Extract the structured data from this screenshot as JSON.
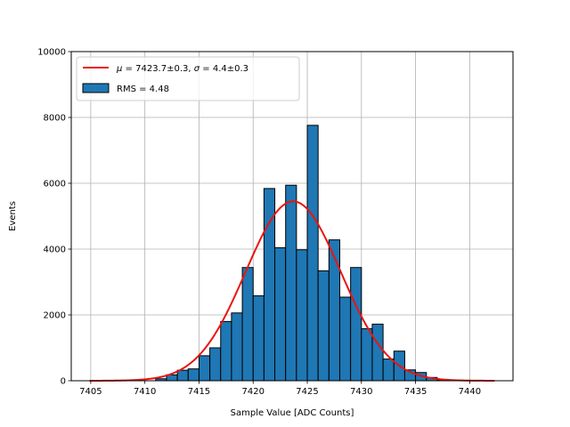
{
  "chart_data": {
    "type": "bar",
    "title": "",
    "xlabel": "Sample Value [ADC Counts]",
    "ylabel": "Events",
    "xlim": [
      7403.2,
      7444.0
    ],
    "ylim": [
      0,
      10000
    ],
    "xticks": [
      7405,
      7410,
      7415,
      7420,
      7425,
      7430,
      7435,
      7440
    ],
    "yticks": [
      0,
      2000,
      4000,
      6000,
      8000,
      10000
    ],
    "grid": true,
    "legend_position": "top-left",
    "histogram": {
      "name": "RMS = 4.48",
      "bin_width": 1,
      "bin_lefts": [
        7411,
        7412,
        7413,
        7414,
        7415,
        7416,
        7417,
        7418,
        7419,
        7420,
        7421,
        7422,
        7423,
        7424,
        7425,
        7426,
        7427,
        7428,
        7429,
        7430,
        7431,
        7432,
        7433,
        7434,
        7435,
        7436,
        7437
      ],
      "values": [
        60,
        180,
        320,
        360,
        760,
        1000,
        1800,
        2060,
        3440,
        2580,
        5840,
        4040,
        5940,
        3980,
        7760,
        3340,
        4280,
        2540,
        3440,
        1580,
        1720,
        660,
        900,
        330,
        250,
        100,
        30
      ],
      "color": "#1f77b4",
      "edge_color": "#000000"
    },
    "fit": {
      "name": "$\\mu = 7423.7\\pm0.3$, $\\sigma = 4.4\\pm0.3$",
      "name_parts": {
        "mu_symbol": "μ",
        "mu_text": " = 7423.7±0.3, ",
        "sigma_symbol": "σ",
        "sigma_text": " = 4.4±0.3"
      },
      "function": "gaussian",
      "mu": 7423.7,
      "sigma": 4.4,
      "amplitude": 5450,
      "x_range": [
        7404.9,
        7442.3
      ],
      "color": "#e8150f"
    }
  }
}
